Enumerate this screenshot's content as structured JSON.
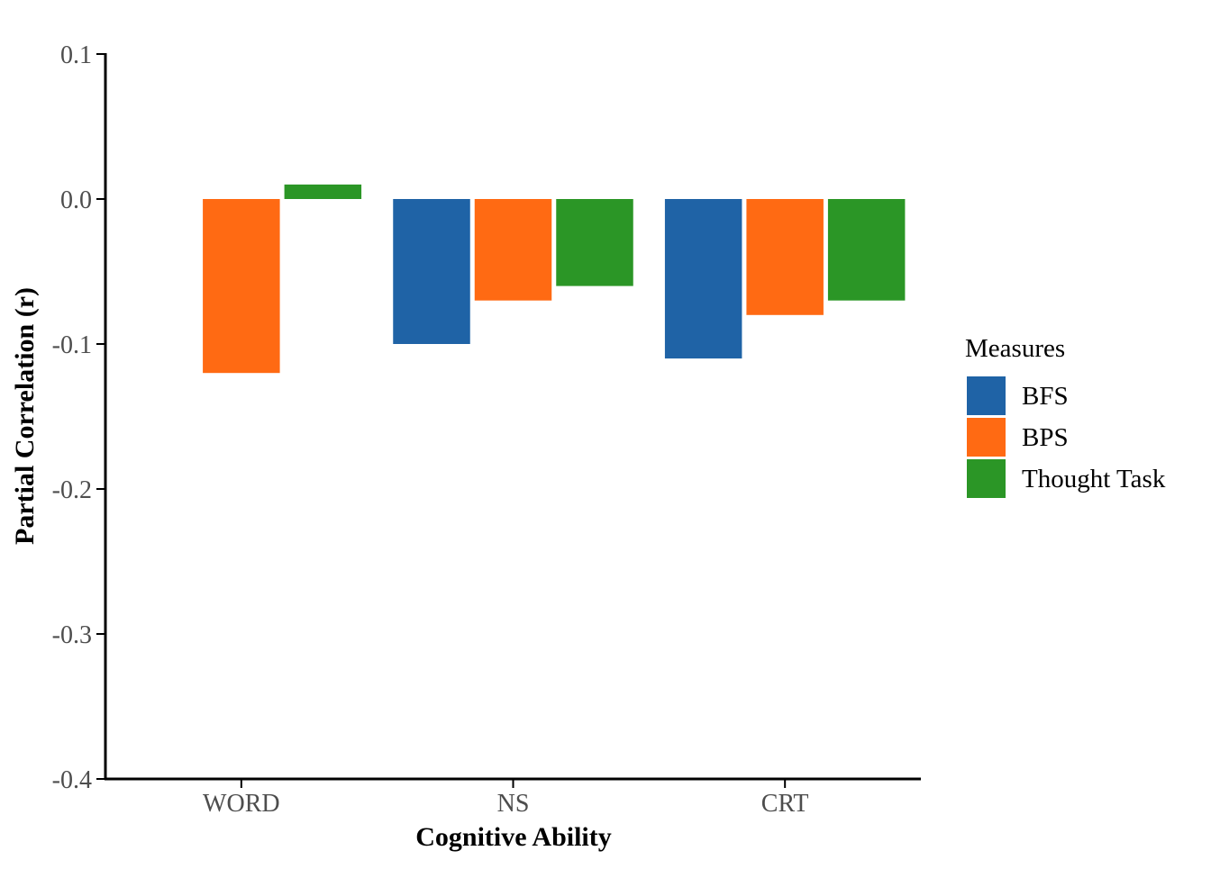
{
  "chart_data": {
    "type": "bar",
    "title": "",
    "xlabel": "Cognitive Ability",
    "ylabel": "Partial Correlation (r)",
    "categories": [
      "WORD",
      "NS",
      "CRT"
    ],
    "series": [
      {
        "name": "BFS",
        "color": "#1f63a6",
        "values": [
          null,
          -0.1,
          -0.11
        ]
      },
      {
        "name": "BPS",
        "color": "#ff6a13",
        "values": [
          -0.12,
          -0.07,
          -0.08
        ]
      },
      {
        "name": "Thought Task",
        "color": "#2b9626",
        "values": [
          0.01,
          -0.06,
          -0.07
        ]
      }
    ],
    "ylim": [
      -0.4,
      0.1
    ],
    "yticks": [
      "0.1",
      "0.0",
      "-0.1",
      "-0.2",
      "-0.3",
      "-0.4"
    ],
    "legend": {
      "title": "Measures",
      "position": "right"
    },
    "grid": false
  }
}
